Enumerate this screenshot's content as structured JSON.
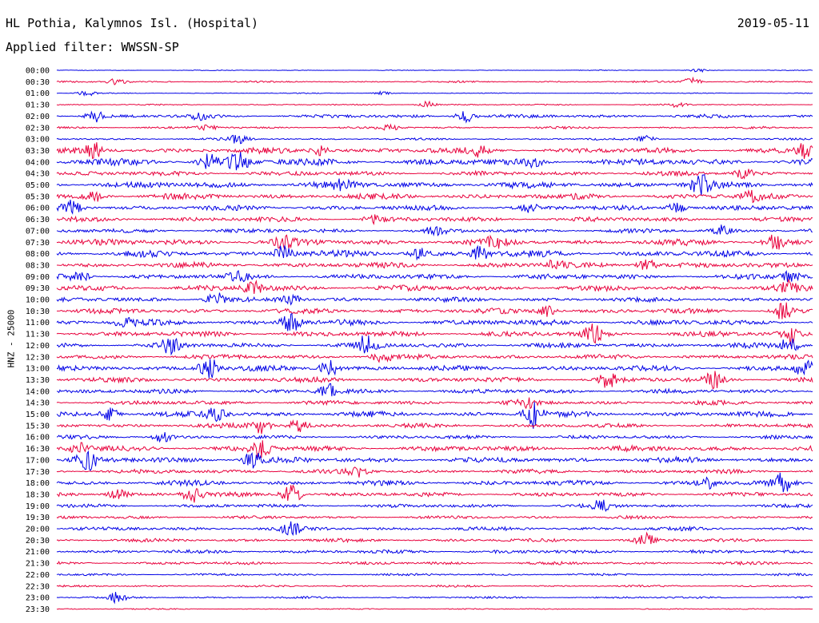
{
  "header": {
    "station": "HL Pothia, Kalymnos Isl. (Hospital)",
    "date": "2019-05-11",
    "filter": "Applied filter: WWSSN-SP"
  },
  "chart_data": {
    "type": "line",
    "title": "HL Pothia, Kalymnos Isl. (Hospital)",
    "subtitle": "Applied filter: WWSSN-SP",
    "date": "2019-05-11",
    "ylabel": "HNZ - 25000",
    "row_labels": [
      "00:00",
      "00:30",
      "01:00",
      "01:30",
      "02:00",
      "02:30",
      "03:00",
      "03:30",
      "04:00",
      "04:30",
      "05:00",
      "05:30",
      "06:00",
      "06:30",
      "07:00",
      "07:30",
      "08:00",
      "08:30",
      "09:00",
      "09:30",
      "10:00",
      "10:30",
      "11:00",
      "11:30",
      "12:00",
      "12:30",
      "13:00",
      "13:30",
      "14:00",
      "14:30",
      "15:00",
      "15:30",
      "16:00",
      "16:30",
      "17:00",
      "17:30",
      "18:00",
      "18:30",
      "19:00",
      "19:30",
      "20:00",
      "20:30",
      "21:00",
      "21:30",
      "22:00",
      "22:30",
      "23:00",
      "23:30"
    ],
    "colors": [
      "#0000e6",
      "#e8003c"
    ],
    "trace_amplitude": [
      0.5,
      1.2,
      0.6,
      0.9,
      2.5,
      1.6,
      1.5,
      4.0,
      4.8,
      3.2,
      4.5,
      4.0,
      3.6,
      3.4,
      3.0,
      4.4,
      4.4,
      3.8,
      3.8,
      4.0,
      3.2,
      3.6,
      4.0,
      3.8,
      3.6,
      3.4,
      3.8,
      3.6,
      3.2,
      3.0,
      3.8,
      3.0,
      2.6,
      4.0,
      4.0,
      3.0,
      3.6,
      3.0,
      2.6,
      2.2,
      2.8,
      2.4,
      2.6,
      2.2,
      1.6,
      1.4,
      1.4,
      0.8
    ],
    "events": [
      {
        "row": 0,
        "t": 0.85,
        "a": 2
      },
      {
        "row": 1,
        "t": 0.08,
        "a": 4
      },
      {
        "row": 1,
        "t": 0.84,
        "a": 5
      },
      {
        "row": 2,
        "t": 0.04,
        "a": 3
      },
      {
        "row": 2,
        "t": 0.43,
        "a": 2
      },
      {
        "row": 3,
        "t": 0.49,
        "a": 4
      },
      {
        "row": 3,
        "t": 0.82,
        "a": 3
      },
      {
        "row": 4,
        "t": 0.05,
        "a": 7
      },
      {
        "row": 4,
        "t": 0.54,
        "a": 8
      },
      {
        "row": 4,
        "t": 0.19,
        "a": 4
      },
      {
        "row": 5,
        "t": 0.2,
        "a": 3
      },
      {
        "row": 5,
        "t": 0.44,
        "a": 3
      },
      {
        "row": 6,
        "t": 0.24,
        "a": 6
      },
      {
        "row": 6,
        "t": 0.78,
        "a": 4
      },
      {
        "row": 7,
        "t": 0.05,
        "a": 8
      },
      {
        "row": 7,
        "t": 0.35,
        "a": 6
      },
      {
        "row": 7,
        "t": 0.56,
        "a": 6
      },
      {
        "row": 7,
        "t": 0.99,
        "a": 9
      },
      {
        "row": 8,
        "t": 0.2,
        "a": 10
      },
      {
        "row": 8,
        "t": 0.24,
        "a": 12
      },
      {
        "row": 8,
        "t": 0.63,
        "a": 5
      },
      {
        "row": 9,
        "t": 0.91,
        "a": 8
      },
      {
        "row": 10,
        "t": 0.85,
        "a": 13
      },
      {
        "row": 10,
        "t": 0.38,
        "a": 6
      },
      {
        "row": 11,
        "t": 0.05,
        "a": 6
      },
      {
        "row": 11,
        "t": 0.92,
        "a": 6
      },
      {
        "row": 12,
        "t": 0.02,
        "a": 9
      },
      {
        "row": 12,
        "t": 0.63,
        "a": 6
      },
      {
        "row": 12,
        "t": 0.82,
        "a": 7
      },
      {
        "row": 13,
        "t": 0.42,
        "a": 5
      },
      {
        "row": 14,
        "t": 0.5,
        "a": 5
      },
      {
        "row": 14,
        "t": 0.88,
        "a": 6
      },
      {
        "row": 15,
        "t": 0.95,
        "a": 9
      },
      {
        "row": 15,
        "t": 0.3,
        "a": 6
      },
      {
        "row": 15,
        "t": 0.58,
        "a": 5
      },
      {
        "row": 16,
        "t": 0.3,
        "a": 10
      },
      {
        "row": 16,
        "t": 0.56,
        "a": 8
      },
      {
        "row": 16,
        "t": 0.48,
        "a": 6
      },
      {
        "row": 17,
        "t": 0.66,
        "a": 8
      },
      {
        "row": 17,
        "t": 0.78,
        "a": 8
      },
      {
        "row": 18,
        "t": 0.03,
        "a": 6
      },
      {
        "row": 18,
        "t": 0.24,
        "a": 7
      },
      {
        "row": 18,
        "t": 0.97,
        "a": 7
      },
      {
        "row": 19,
        "t": 0.26,
        "a": 8
      },
      {
        "row": 19,
        "t": 0.97,
        "a": 7
      },
      {
        "row": 20,
        "t": 0.21,
        "a": 9
      },
      {
        "row": 20,
        "t": 0.31,
        "a": 6
      },
      {
        "row": 21,
        "t": 0.96,
        "a": 11
      },
      {
        "row": 21,
        "t": 0.65,
        "a": 7
      },
      {
        "row": 22,
        "t": 0.31,
        "a": 12
      },
      {
        "row": 22,
        "t": 0.09,
        "a": 6
      },
      {
        "row": 23,
        "t": 0.71,
        "a": 11
      },
      {
        "row": 23,
        "t": 0.97,
        "a": 13
      },
      {
        "row": 24,
        "t": 0.15,
        "a": 9
      },
      {
        "row": 24,
        "t": 0.41,
        "a": 12
      },
      {
        "row": 24,
        "t": 0.97,
        "a": 9
      },
      {
        "row": 25,
        "t": 0.43,
        "a": 6
      },
      {
        "row": 26,
        "t": 0.2,
        "a": 16
      },
      {
        "row": 26,
        "t": 0.36,
        "a": 10
      },
      {
        "row": 26,
        "t": 0.99,
        "a": 10
      },
      {
        "row": 27,
        "t": 0.73,
        "a": 9
      },
      {
        "row": 27,
        "t": 0.87,
        "a": 9
      },
      {
        "row": 28,
        "t": 0.36,
        "a": 10
      },
      {
        "row": 29,
        "t": 0.62,
        "a": 6
      },
      {
        "row": 30,
        "t": 0.63,
        "a": 17
      },
      {
        "row": 30,
        "t": 0.07,
        "a": 8
      },
      {
        "row": 30,
        "t": 0.21,
        "a": 8
      },
      {
        "row": 31,
        "t": 0.27,
        "a": 9
      },
      {
        "row": 31,
        "t": 0.32,
        "a": 8
      },
      {
        "row": 32,
        "t": 0.14,
        "a": 6
      },
      {
        "row": 33,
        "t": 0.27,
        "a": 12
      },
      {
        "row": 33,
        "t": 0.03,
        "a": 7
      },
      {
        "row": 34,
        "t": 0.04,
        "a": 13
      },
      {
        "row": 34,
        "t": 0.26,
        "a": 12
      },
      {
        "row": 35,
        "t": 0.4,
        "a": 6
      },
      {
        "row": 36,
        "t": 0.96,
        "a": 11
      },
      {
        "row": 36,
        "t": 0.86,
        "a": 6
      },
      {
        "row": 37,
        "t": 0.31,
        "a": 14
      },
      {
        "row": 37,
        "t": 0.18,
        "a": 11
      },
      {
        "row": 37,
        "t": 0.08,
        "a": 6
      },
      {
        "row": 38,
        "t": 0.72,
        "a": 6
      },
      {
        "row": 40,
        "t": 0.31,
        "a": 7
      },
      {
        "row": 41,
        "t": 0.78,
        "a": 9
      },
      {
        "row": 46,
        "t": 0.08,
        "a": 6
      }
    ]
  }
}
